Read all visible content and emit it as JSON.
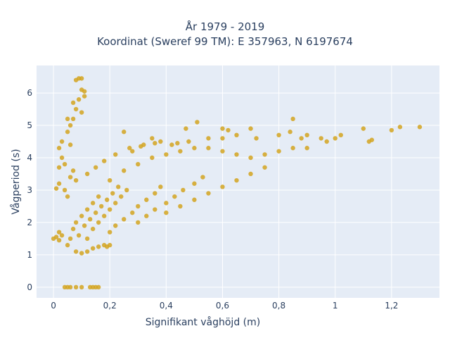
{
  "chart_data": {
    "type": "scatter",
    "title": "År 1979 - 2019",
    "subtitle": "Koordinat (Sweref 99 TM): E 357963, N 6197674",
    "xlabel": "Signifikant våghöjd (m)",
    "ylabel": "Vågperiod (s)",
    "xlim": [
      -0.06,
      1.37
    ],
    "ylim": [
      -0.33,
      6.85
    ],
    "x_ticks": [
      0,
      0.2,
      0.4,
      0.6,
      0.8,
      1,
      1.2
    ],
    "x_tick_labels": [
      "0",
      "0,2",
      "0,4",
      "0,6",
      "0,8",
      "1",
      "1,2"
    ],
    "y_ticks": [
      0,
      1,
      2,
      3,
      4,
      5,
      6
    ],
    "y_tick_labels": [
      "0",
      "1",
      "2",
      "3",
      "4",
      "5",
      "6"
    ],
    "grid": true,
    "plot_bgcolor": "#e5ecf6",
    "marker_color": "#d4a520",
    "series": [
      {
        "values": [
          [
            0.04,
            0.0
          ],
          [
            0.05,
            0.0
          ],
          [
            0.06,
            0.0
          ],
          [
            0.08,
            0.0
          ],
          [
            0.1,
            0.0
          ],
          [
            0.13,
            0.0
          ],
          [
            0.14,
            0.0
          ],
          [
            0.15,
            0.0
          ],
          [
            0.16,
            0.0
          ],
          [
            0.0,
            1.5
          ],
          [
            0.01,
            1.55
          ],
          [
            0.02,
            1.45
          ],
          [
            0.03,
            1.6
          ],
          [
            0.02,
            1.7
          ],
          [
            0.08,
            1.1
          ],
          [
            0.1,
            1.05
          ],
          [
            0.12,
            1.1
          ],
          [
            0.14,
            1.2
          ],
          [
            0.16,
            1.25
          ],
          [
            0.18,
            1.3
          ],
          [
            0.19,
            1.25
          ],
          [
            0.2,
            1.3
          ],
          [
            0.05,
            1.3
          ],
          [
            0.06,
            1.5
          ],
          [
            0.07,
            1.8
          ],
          [
            0.08,
            2.0
          ],
          [
            0.1,
            2.2
          ],
          [
            0.12,
            2.4
          ],
          [
            0.14,
            2.6
          ],
          [
            0.16,
            2.8
          ],
          [
            0.09,
            1.6
          ],
          [
            0.11,
            1.9
          ],
          [
            0.13,
            2.1
          ],
          [
            0.15,
            2.3
          ],
          [
            0.17,
            2.5
          ],
          [
            0.19,
            2.7
          ],
          [
            0.21,
            2.9
          ],
          [
            0.23,
            3.1
          ],
          [
            0.12,
            1.5
          ],
          [
            0.14,
            1.8
          ],
          [
            0.16,
            2.0
          ],
          [
            0.18,
            2.2
          ],
          [
            0.2,
            2.4
          ],
          [
            0.22,
            2.6
          ],
          [
            0.24,
            2.8
          ],
          [
            0.26,
            3.0
          ],
          [
            0.2,
            1.7
          ],
          [
            0.22,
            1.9
          ],
          [
            0.25,
            2.1
          ],
          [
            0.28,
            2.3
          ],
          [
            0.3,
            2.5
          ],
          [
            0.33,
            2.7
          ],
          [
            0.36,
            2.9
          ],
          [
            0.38,
            3.1
          ],
          [
            0.3,
            2.0
          ],
          [
            0.33,
            2.2
          ],
          [
            0.36,
            2.4
          ],
          [
            0.4,
            2.6
          ],
          [
            0.43,
            2.8
          ],
          [
            0.46,
            3.0
          ],
          [
            0.5,
            3.2
          ],
          [
            0.53,
            3.4
          ],
          [
            0.4,
            2.3
          ],
          [
            0.45,
            2.5
          ],
          [
            0.5,
            2.7
          ],
          [
            0.55,
            2.9
          ],
          [
            0.6,
            3.1
          ],
          [
            0.65,
            3.3
          ],
          [
            0.7,
            3.5
          ],
          [
            0.75,
            3.7
          ],
          [
            0.2,
            3.3
          ],
          [
            0.25,
            3.6
          ],
          [
            0.3,
            3.8
          ],
          [
            0.35,
            4.0
          ],
          [
            0.4,
            4.1
          ],
          [
            0.45,
            4.2
          ],
          [
            0.5,
            4.3
          ],
          [
            0.55,
            4.3
          ],
          [
            0.6,
            4.2
          ],
          [
            0.65,
            4.1
          ],
          [
            0.7,
            4.0
          ],
          [
            0.75,
            4.1
          ],
          [
            0.8,
            4.2
          ],
          [
            0.85,
            4.3
          ],
          [
            0.9,
            4.3
          ],
          [
            0.28,
            4.2
          ],
          [
            0.32,
            4.4
          ],
          [
            0.38,
            4.5
          ],
          [
            0.42,
            4.4
          ],
          [
            0.48,
            4.5
          ],
          [
            0.55,
            4.6
          ],
          [
            0.47,
            4.9
          ],
          [
            0.51,
            5.1
          ],
          [
            0.6,
            4.9
          ],
          [
            0.62,
            4.85
          ],
          [
            0.65,
            4.7
          ],
          [
            0.7,
            4.9
          ],
          [
            0.72,
            4.6
          ],
          [
            0.8,
            4.7
          ],
          [
            0.84,
            4.8
          ],
          [
            0.88,
            4.6
          ],
          [
            0.9,
            4.7
          ],
          [
            0.95,
            4.6
          ],
          [
            0.97,
            4.5
          ],
          [
            1.0,
            4.6
          ],
          [
            1.02,
            4.7
          ],
          [
            1.1,
            4.9
          ],
          [
            1.12,
            4.5
          ],
          [
            1.13,
            4.55
          ],
          [
            1.2,
            4.85
          ],
          [
            1.23,
            4.95
          ],
          [
            1.3,
            4.95
          ],
          [
            0.85,
            5.2
          ],
          [
            0.6,
            4.6
          ],
          [
            0.35,
            4.6
          ],
          [
            0.25,
            4.8
          ],
          [
            0.05,
            4.8
          ],
          [
            0.06,
            5.0
          ],
          [
            0.07,
            5.2
          ],
          [
            0.08,
            5.5
          ],
          [
            0.09,
            5.8
          ],
          [
            0.1,
            6.1
          ],
          [
            0.11,
            5.9
          ],
          [
            0.1,
            5.4
          ],
          [
            0.08,
            6.4
          ],
          [
            0.09,
            6.45
          ],
          [
            0.1,
            6.45
          ],
          [
            0.11,
            6.05
          ],
          [
            0.07,
            5.7
          ],
          [
            0.05,
            5.2
          ],
          [
            0.02,
            4.3
          ],
          [
            0.03,
            4.0
          ],
          [
            0.04,
            3.8
          ],
          [
            0.02,
            3.7
          ],
          [
            0.06,
            4.4
          ],
          [
            0.03,
            4.5
          ],
          [
            0.01,
            3.05
          ],
          [
            0.02,
            3.2
          ],
          [
            0.04,
            3.0
          ],
          [
            0.05,
            2.8
          ],
          [
            0.06,
            3.4
          ],
          [
            0.07,
            3.6
          ],
          [
            0.08,
            3.3
          ],
          [
            0.12,
            3.5
          ],
          [
            0.15,
            3.7
          ],
          [
            0.18,
            3.9
          ],
          [
            0.22,
            4.1
          ],
          [
            0.27,
            4.3
          ],
          [
            0.31,
            4.35
          ],
          [
            0.36,
            4.45
          ],
          [
            0.44,
            4.45
          ]
        ]
      }
    ]
  }
}
